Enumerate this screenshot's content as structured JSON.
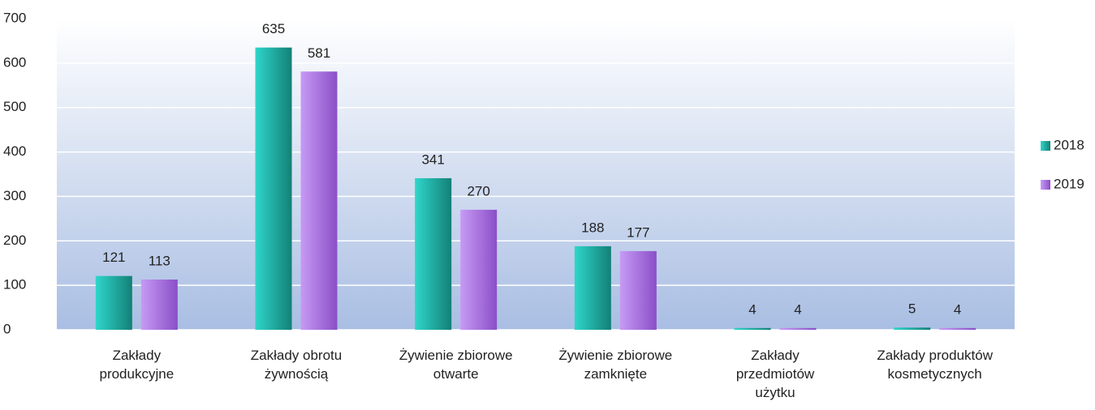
{
  "chart_data": {
    "type": "bar",
    "categories": [
      "Zakłady\nprodukcyjne",
      "Zakłady obrotu\nżywnością",
      "Żywienie zbiorowe\notwarte",
      "Żywienie zbiorowe\nzamknięte",
      "Zakłady\nprzedmiotów\nużytku",
      "Zakłady produktów\nkosmetycznych"
    ],
    "series": [
      {
        "name": "2018",
        "color": "#1fb8ae",
        "values": [
          121,
          635,
          341,
          188,
          4,
          5
        ]
      },
      {
        "name": "2019",
        "color": "#a772e0",
        "values": [
          113,
          581,
          270,
          177,
          4,
          4
        ]
      }
    ],
    "ylim": [
      0,
      700
    ],
    "yticks": [
      0,
      100,
      200,
      300,
      400,
      500,
      600,
      700
    ],
    "grid": true,
    "legend": "right"
  }
}
